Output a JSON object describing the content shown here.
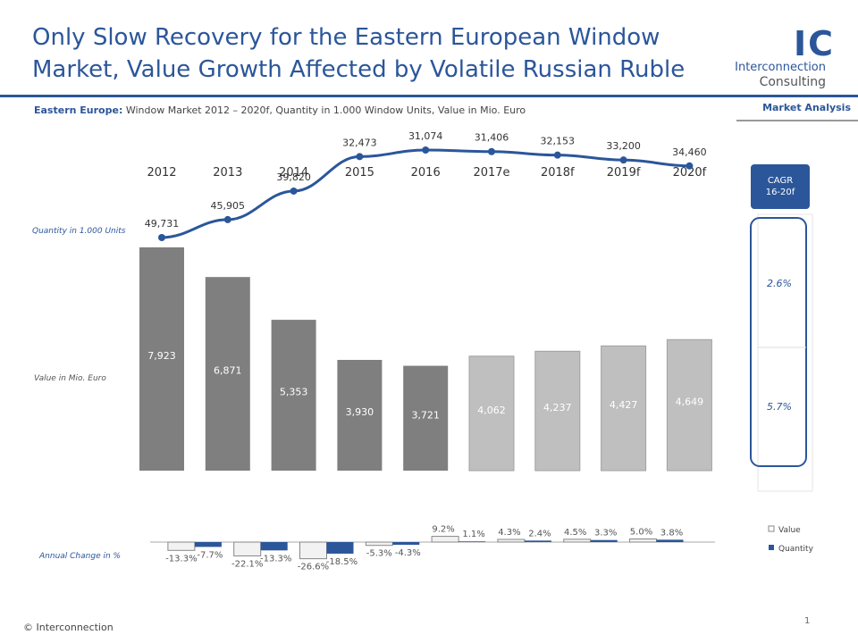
{
  "header": {
    "title_line1": "Only Slow Recovery for the Eastern European Window",
    "title_line2": "Market, Value Growth Affected by Volatile Russian Ruble",
    "subtitle_bold": "Eastern Europe:",
    "subtitle_rest": " Window Market 2012 – 2020f, Quantity in 1.000 Window Units, Value in Mio. Euro",
    "logo_mark": "IC",
    "logo_line1": "Interconnection",
    "logo_line2": "Consulting",
    "tag": "Market Analysis"
  },
  "footer": {
    "copyright": "© Interconnection",
    "page": "1"
  },
  "colors": {
    "accent": "#2b569a",
    "actual_bar": "#7f7f7f",
    "forecast_bar": "#bfbfbf",
    "value_change_fill": "#f2f2f2",
    "quantity_change_fill": "#2b569a"
  },
  "chart_data": {
    "type": "bar",
    "categories": [
      "2012",
      "2013",
      "2014",
      "2015",
      "2016",
      "2017e",
      "2018f",
      "2019f",
      "2020f"
    ],
    "value_label": "Value in Mio. Euro",
    "quantity_label": "Quantity in 1.000  Units",
    "change_label": "Annual Change in %",
    "value": [
      7923,
      6871,
      5353,
      3930,
      3721,
      4062,
      4237,
      4427,
      4649
    ],
    "value_labels": [
      "7,923",
      "6,871",
      "5,353",
      "3,930",
      "3,721",
      "4,062",
      "4,237",
      "4,427",
      "4,649"
    ],
    "forecast_from_index": 5,
    "quantity": [
      49731,
      45905,
      39820,
      32473,
      31074,
      31406,
      32153,
      33200,
      34460
    ],
    "quantity_labels": [
      "49,731",
      "45,905",
      "39,820",
      "32,473",
      "31,074",
      "31,406",
      "32,153",
      "33,200",
      "34,460"
    ],
    "annual_change": {
      "series": [
        {
          "name": "Value",
          "values": [
            -13.3,
            -22.1,
            -26.6,
            -5.3,
            9.2,
            4.3,
            4.5,
            5.0
          ],
          "labels": [
            "-13.3%",
            "-22.1%",
            "-26.6%",
            "-5.3%",
            "9.2%",
            "4.3%",
            "4.5%",
            "5.0%"
          ]
        },
        {
          "name": "Quantity",
          "values": [
            -7.7,
            -13.3,
            -18.5,
            -4.3,
            1.1,
            2.4,
            3.3,
            3.8
          ],
          "labels": [
            "-7.7%",
            "-13.3%",
            "-18.5%",
            "-4.3%",
            "1.1%",
            "2.4%",
            "3.3%",
            "3.8%"
          ]
        }
      ]
    },
    "cagr": {
      "header": [
        "CAGR",
        "16-20f"
      ],
      "quantity": "2.6%",
      "value": "5.7%"
    }
  }
}
